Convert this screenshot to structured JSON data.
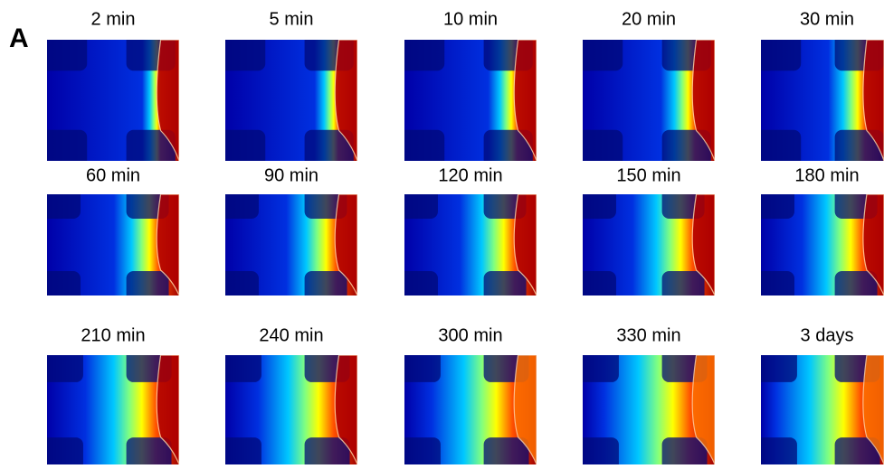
{
  "panel_label": "A",
  "panels": [
    "2 min",
    "5 min",
    "10 min",
    "20 min",
    "30 min",
    "60 min",
    "90 min",
    "120 min",
    "150 min",
    "180 min",
    "210 min",
    "240 min",
    "300 min",
    "330 min",
    "3 days"
  ]
}
